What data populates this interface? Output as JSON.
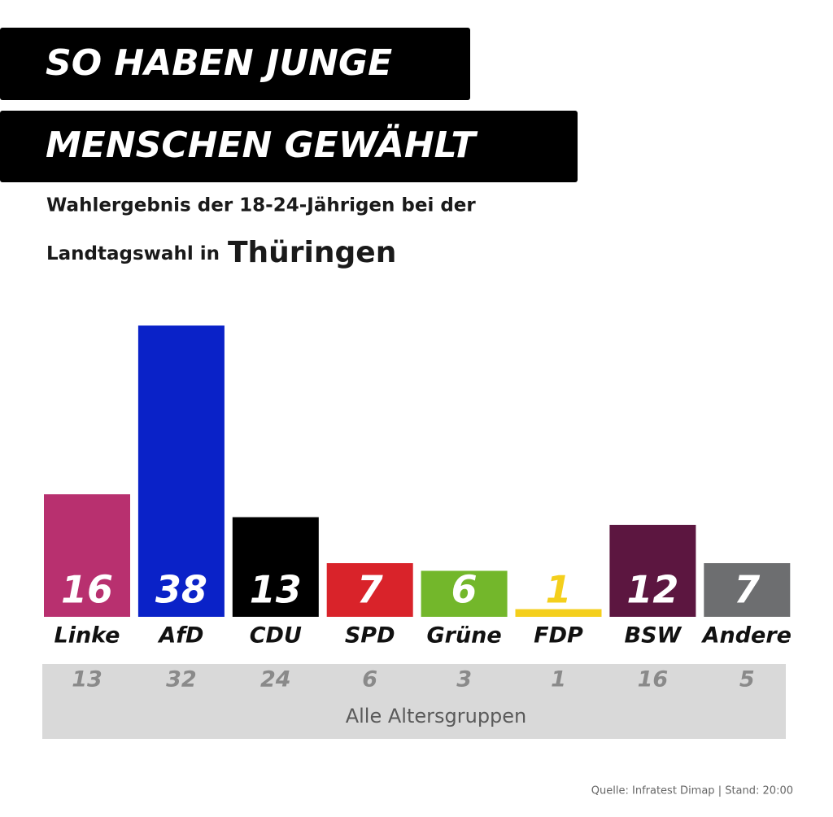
{
  "chart_data": {
    "type": "bar",
    "title_lines": [
      "SO HABEN JUNGE",
      "MENSCHEN GEWÄHLT"
    ],
    "subtitle_line1": "Wahlergebnis der 18-24-Jährigen bei der",
    "subtitle_line2": "Landtagswahl in",
    "subtitle_highlight": "Thüringen",
    "categories": [
      "Linke",
      "AfD",
      "CDU",
      "SPD",
      "Grüne",
      "FDP",
      "BSW",
      "Andere"
    ],
    "values": [
      16,
      38,
      13,
      7,
      6,
      1,
      12,
      7
    ],
    "colors": [
      "#b8306f",
      "#0a22c8",
      "#000000",
      "#d9232a",
      "#73b72b",
      "#f4cf1c",
      "#5c1640",
      "#6d6e70"
    ],
    "value_label_colors": [
      "#ffffff",
      "#ffffff",
      "#ffffff",
      "#ffffff",
      "#ffffff",
      "#f4cf1c",
      "#ffffff",
      "#ffffff"
    ],
    "comparison": {
      "label": "Alle Altersgruppen",
      "values": [
        13,
        32,
        24,
        6,
        3,
        1,
        16,
        5
      ]
    },
    "source": "Quelle: Infratest Dimap | Stand: 20:00"
  }
}
